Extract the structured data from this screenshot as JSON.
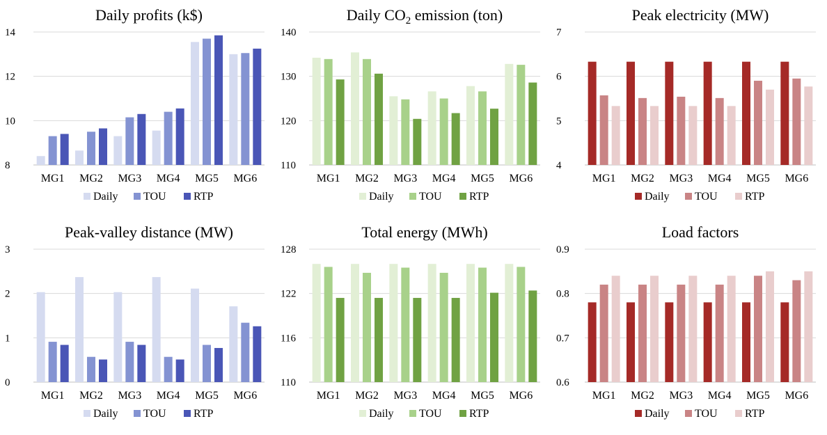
{
  "legend_labels": [
    "Daily",
    "TOU",
    "RTP"
  ],
  "palettes": {
    "blue": [
      "#d5dbf0",
      "#8493d2",
      "#4a56b6"
    ],
    "green": [
      "#e2efd5",
      "#a8d18a",
      "#70a243"
    ],
    "red": [
      "#a52a27",
      "#c98485",
      "#e9cdcd"
    ]
  },
  "chart_data": [
    {
      "type": "bar",
      "title": "Daily profits (k$)",
      "palette": "blue",
      "categories": [
        "MG1",
        "MG2",
        "MG3",
        "MG4",
        "MG5",
        "MG6"
      ],
      "ylim": [
        8,
        14
      ],
      "yticks": [
        8,
        10,
        12,
        14
      ],
      "ytick_labels": [
        "8",
        "10",
        "12",
        "14"
      ],
      "grid": true,
      "legend_position": "bottom",
      "series": [
        {
          "name": "Daily",
          "values": [
            8.4,
            8.65,
            9.3,
            9.55,
            13.55,
            13.0
          ]
        },
        {
          "name": "TOU",
          "values": [
            9.3,
            9.5,
            10.15,
            10.4,
            13.7,
            13.05
          ]
        },
        {
          "name": "RTP",
          "values": [
            9.4,
            9.65,
            10.3,
            10.55,
            13.85,
            13.25
          ]
        }
      ]
    },
    {
      "type": "bar",
      "title": "Daily CO",
      "title_sub": "2",
      "title_suffix": " emission (ton)",
      "palette": "green",
      "categories": [
        "MG1",
        "MG2",
        "MG3",
        "MG4",
        "MG5",
        "MG6"
      ],
      "ylim": [
        110,
        140
      ],
      "yticks": [
        110,
        120,
        130,
        140
      ],
      "ytick_labels": [
        "110",
        "120",
        "130",
        "140"
      ],
      "grid": true,
      "legend_position": "bottom",
      "series": [
        {
          "name": "Daily",
          "values": [
            134.2,
            135.4,
            125.5,
            126.6,
            127.8,
            132.8
          ]
        },
        {
          "name": "TOU",
          "values": [
            133.9,
            133.9,
            124.8,
            125.0,
            126.6,
            132.6
          ]
        },
        {
          "name": "RTP",
          "values": [
            129.3,
            130.6,
            120.4,
            121.7,
            122.7,
            128.6
          ]
        }
      ]
    },
    {
      "type": "bar",
      "title": "Peak electricity  (MW)",
      "palette": "red",
      "categories": [
        "MG1",
        "MG2",
        "MG3",
        "MG4",
        "MG5",
        "MG6"
      ],
      "ylim": [
        4,
        7
      ],
      "yticks": [
        4,
        5,
        6,
        7
      ],
      "ytick_labels": [
        "4",
        "5",
        "6",
        "7"
      ],
      "grid": true,
      "legend_position": "bottom",
      "series": [
        {
          "name": "Daily",
          "values": [
            6.33,
            6.33,
            6.33,
            6.33,
            6.33,
            6.33
          ]
        },
        {
          "name": "TOU",
          "values": [
            5.57,
            5.51,
            5.54,
            5.51,
            5.9,
            5.95
          ]
        },
        {
          "name": "RTP",
          "values": [
            5.33,
            5.33,
            5.33,
            5.33,
            5.7,
            5.77
          ]
        }
      ]
    },
    {
      "type": "bar",
      "title": "Peak-valley  distance (MW)",
      "palette": "blue",
      "categories": [
        "MG1",
        "MG2",
        "MG3",
        "MG4",
        "MG5",
        "MG6"
      ],
      "ylim": [
        0,
        3
      ],
      "yticks": [
        0,
        1,
        2,
        3
      ],
      "ytick_labels": [
        "0",
        "1",
        "2",
        "3"
      ],
      "grid": true,
      "legend_position": "bottom",
      "series": [
        {
          "name": "Daily",
          "values": [
            2.03,
            2.37,
            2.03,
            2.37,
            2.11,
            1.71
          ]
        },
        {
          "name": "TOU",
          "values": [
            0.91,
            0.57,
            0.91,
            0.57,
            0.84,
            1.34
          ]
        },
        {
          "name": "RTP",
          "values": [
            0.84,
            0.51,
            0.84,
            0.51,
            0.77,
            1.26
          ]
        }
      ]
    },
    {
      "type": "bar",
      "title": "Total energy (MWh)",
      "palette": "green",
      "categories": [
        "MG1",
        "MG2",
        "MG3",
        "MG4",
        "MG5",
        "MG6"
      ],
      "ylim": [
        110,
        128
      ],
      "yticks": [
        110,
        116,
        122,
        128
      ],
      "ytick_labels": [
        "110",
        "116",
        "122",
        "128"
      ],
      "grid": true,
      "legend_position": "bottom",
      "series": [
        {
          "name": "Daily",
          "values": [
            126.0,
            126.0,
            126.0,
            126.0,
            126.0,
            126.0
          ]
        },
        {
          "name": "TOU",
          "values": [
            125.6,
            124.8,
            125.5,
            124.8,
            125.5,
            125.6
          ]
        },
        {
          "name": "RTP",
          "values": [
            121.4,
            121.4,
            121.4,
            121.4,
            122.1,
            122.4
          ]
        }
      ]
    },
    {
      "type": "bar",
      "title": "Load factors",
      "palette": "red",
      "categories": [
        "MG1",
        "MG2",
        "MG3",
        "MG4",
        "MG5",
        "MG6"
      ],
      "ylim": [
        0.6,
        0.9
      ],
      "yticks": [
        0.6,
        0.7,
        0.8,
        0.9
      ],
      "ytick_labels": [
        "0.6",
        "0.7",
        "0.8",
        "0.9"
      ],
      "grid": true,
      "legend_position": "bottom",
      "series": [
        {
          "name": "Daily",
          "values": [
            0.78,
            0.78,
            0.78,
            0.78,
            0.78,
            0.78
          ]
        },
        {
          "name": "TOU",
          "values": [
            0.82,
            0.82,
            0.82,
            0.82,
            0.84,
            0.83
          ]
        },
        {
          "name": "RTP",
          "values": [
            0.84,
            0.84,
            0.84,
            0.84,
            0.85,
            0.85
          ]
        }
      ]
    }
  ]
}
